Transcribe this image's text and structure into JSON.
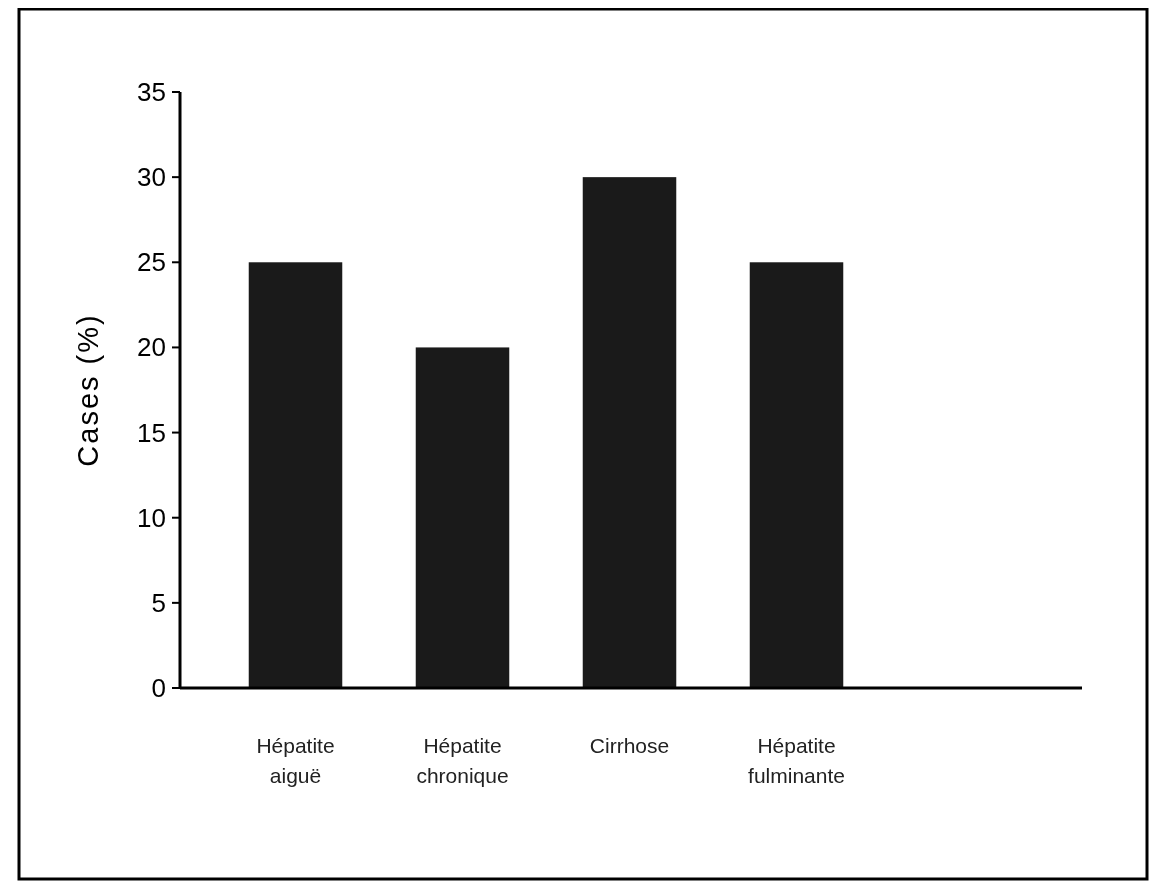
{
  "chart_data": {
    "type": "bar",
    "ylabel": "Cases (%)",
    "categories": [
      "Hépatite aiguë",
      "Hépatite chronique",
      "Cirrhose",
      "Hépatite fulminante"
    ],
    "values": [
      25,
      20,
      30,
      25
    ],
    "color": "#1a1a1a",
    "ylim": [
      0,
      35
    ],
    "yticks": [
      0,
      5,
      10,
      15,
      20,
      25,
      30,
      35
    ],
    "grid": false
  }
}
